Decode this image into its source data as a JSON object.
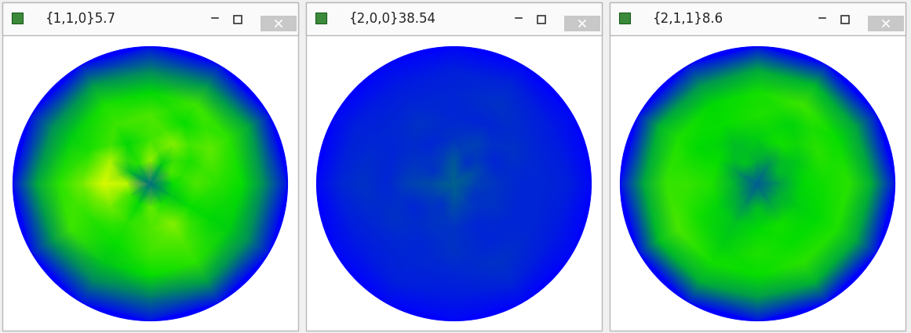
{
  "chart_data": [
    {
      "type": "heatmap",
      "title": "{1,1,0}5.7",
      "tick_labels": false,
      "rlim": [
        0,
        90
      ],
      "r": [
        0,
        15,
        30,
        45,
        60,
        75,
        90
      ],
      "theta": [
        0,
        30,
        60,
        90,
        120,
        150,
        180,
        210,
        240,
        270,
        300,
        330
      ],
      "color_range": [
        0,
        5.7
      ],
      "cells": [
        [
          1.2,
          1.2,
          1.2,
          1.2,
          1.2,
          1.2,
          1.2,
          1.2,
          1.2,
          1.2,
          1.2,
          1.2
        ],
        [
          2.6,
          3.0,
          2.4,
          3.4,
          2.8,
          2.2,
          3.6,
          2.9,
          2.5,
          3.1,
          2.7,
          2.3
        ],
        [
          3.0,
          2.7,
          3.3,
          2.9,
          2.5,
          3.5,
          3.8,
          3.2,
          2.8,
          3.0,
          3.3,
          2.6
        ],
        [
          2.8,
          3.1,
          2.6,
          3.0,
          2.9,
          2.7,
          3.2,
          2.8,
          2.6,
          2.9,
          3.0,
          2.5
        ],
        [
          2.6,
          2.8,
          2.9,
          2.5,
          2.7,
          2.4,
          2.8,
          2.9,
          2.3,
          2.6,
          2.8,
          2.4
        ],
        [
          1.6,
          1.9,
          1.7,
          1.5,
          1.8,
          1.6,
          1.9,
          1.7,
          1.5,
          1.4,
          1.8,
          1.6
        ],
        [
          0.2,
          0.2,
          0.2,
          0.2,
          0.2,
          0.2,
          0.2,
          0.2,
          0.2,
          0.2,
          0.2,
          0.2
        ]
      ]
    },
    {
      "type": "heatmap",
      "title": "{2,0,0}38.54",
      "tick_labels": false,
      "rlim": [
        0,
        90
      ],
      "r": [
        0,
        15,
        30,
        45,
        60,
        75,
        90
      ],
      "theta": [
        0,
        30,
        60,
        90,
        120,
        150,
        180,
        210,
        240,
        270,
        300,
        330
      ],
      "color_range": [
        0,
        38.54
      ],
      "cells": [
        [
          8,
          8,
          8,
          8,
          8,
          8,
          8,
          8,
          8,
          8,
          8,
          8
        ],
        [
          5,
          6,
          4,
          7,
          5,
          4,
          6,
          5,
          4,
          6,
          5,
          4
        ],
        [
          4,
          3,
          5,
          4,
          3,
          4,
          5,
          3,
          4,
          4,
          3,
          4
        ],
        [
          3,
          4,
          3,
          3,
          4,
          3,
          3,
          4,
          3,
          4,
          3,
          3
        ],
        [
          3,
          3,
          4,
          3,
          3,
          3,
          4,
          3,
          3,
          3,
          4,
          3
        ],
        [
          2.5,
          2,
          3,
          2.5,
          2,
          2.5,
          3,
          2,
          2.5,
          2,
          3,
          2
        ],
        [
          0.5,
          0.5,
          0.5,
          0.5,
          0.5,
          0.5,
          0.5,
          0.5,
          0.5,
          0.5,
          0.5,
          0.5
        ]
      ]
    },
    {
      "type": "heatmap",
      "title": "{2,1,1}8.6",
      "tick_labels": false,
      "rlim": [
        0,
        90
      ],
      "r": [
        0,
        15,
        30,
        45,
        60,
        75,
        90
      ],
      "theta": [
        0,
        30,
        60,
        90,
        120,
        150,
        180,
        210,
        240,
        270,
        300,
        330
      ],
      "color_range": [
        0,
        8.6
      ],
      "cells": [
        [
          1.5,
          1.5,
          1.5,
          1.5,
          1.5,
          1.5,
          1.5,
          1.5,
          1.5,
          1.5,
          1.5,
          1.5
        ],
        [
          2.8,
          3.2,
          2.6,
          3.0,
          3.4,
          2.7,
          3.1,
          2.9,
          2.5,
          3.3,
          2.8,
          3.0
        ],
        [
          3.8,
          3.5,
          4.0,
          3.6,
          3.3,
          3.9,
          4.1,
          3.7,
          3.4,
          3.8,
          4.0,
          3.6
        ],
        [
          4.0,
          4.2,
          3.7,
          4.1,
          3.9,
          3.8,
          4.3,
          4.0,
          3.6,
          4.1,
          3.9,
          3.8
        ],
        [
          4.2,
          3.9,
          4.4,
          4.0,
          3.8,
          4.1,
          4.3,
          4.5,
          4.0,
          3.9,
          4.2,
          4.1
        ],
        [
          3.0,
          2.8,
          3.2,
          2.9,
          2.6,
          3.1,
          2.9,
          3.3,
          3.0,
          2.7,
          3.1,
          2.9
        ],
        [
          0.3,
          0.3,
          0.3,
          0.3,
          0.3,
          0.3,
          0.3,
          0.3,
          0.3,
          0.3,
          0.3,
          0.3
        ]
      ]
    }
  ]
}
